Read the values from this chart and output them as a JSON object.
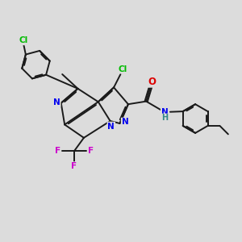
{
  "bg_color": "#dcdcdc",
  "bond_color": "#1a1a1a",
  "bond_width": 1.4,
  "dbo": 0.055,
  "atom_colors": {
    "C": "#1a1a1a",
    "N": "#0000ee",
    "O": "#dd0000",
    "Cl": "#00bb00",
    "F": "#cc00cc",
    "H": "#338888"
  },
  "fs": 8.5,
  "fs_small": 7.5,
  "fs_tiny": 7.0
}
